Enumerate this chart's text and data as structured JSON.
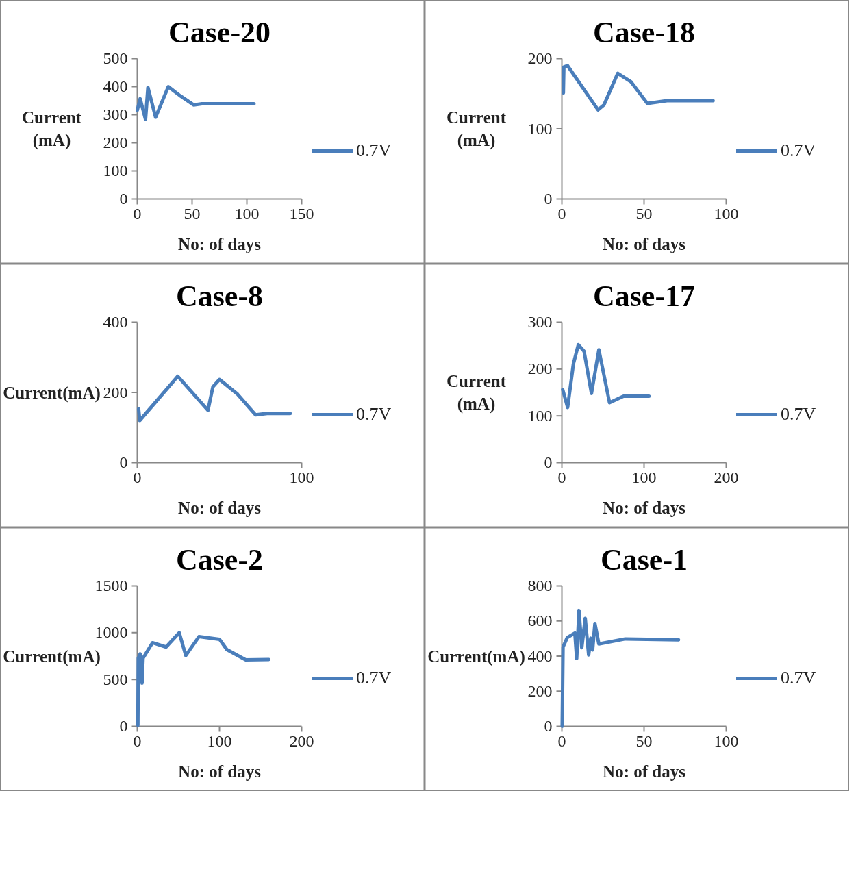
{
  "chart_data": [
    {
      "type": "line",
      "title": "Case-20",
      "xlabel": "No: of days",
      "ylabel": "Current (mA)",
      "xlim": [
        0,
        150
      ],
      "xticks": [
        0,
        50,
        100,
        150
      ],
      "ylim": [
        0,
        500
      ],
      "yticks": [
        0,
        100,
        200,
        300,
        400,
        500
      ],
      "grid": false,
      "legend": "right",
      "line_style": "solid",
      "series": [
        {
          "name": "0.7V",
          "color": "#4a7ebb",
          "x": [
            0,
            2.6,
            7.5,
            9.7,
            16.7,
            28.3,
            39,
            51.4,
            59,
            106.5
          ],
          "values": [
            316,
            357,
            283,
            397,
            291,
            400,
            368,
            335,
            339,
            339
          ]
        }
      ]
    },
    {
      "type": "line",
      "title": "Case-18",
      "xlabel": "No: of days",
      "ylabel": "Current (mA)",
      "xlim": [
        0,
        100
      ],
      "xticks": [
        0,
        50,
        100
      ],
      "ylim": [
        0,
        200
      ],
      "yticks": [
        0,
        100,
        200
      ],
      "grid": false,
      "legend": "right",
      "line_style": "solid",
      "series": [
        {
          "name": "0.7V",
          "color": "#4a7ebb",
          "x": [
            0.9,
            1.2,
            3.4,
            22,
            25.6,
            34,
            42,
            52,
            64,
            92
          ],
          "values": [
            151,
            188,
            190,
            127,
            134,
            179,
            167,
            136,
            140,
            140
          ]
        }
      ]
    },
    {
      "type": "line",
      "title": "Case-8",
      "xlabel": "No: of days",
      "ylabel": "Current(mA)",
      "xlim": [
        0,
        100
      ],
      "xticks": [
        0,
        100
      ],
      "ylim": [
        0,
        400
      ],
      "yticks": [
        0,
        200,
        400
      ],
      "grid": false,
      "legend": "right",
      "line_style": "solid",
      "series": [
        {
          "name": "0.7V",
          "color": "#4a7ebb",
          "x": [
            0.8,
            1.5,
            24.6,
            43,
            46,
            50,
            61,
            72,
            79,
            93
          ],
          "values": [
            153,
            120,
            246,
            149,
            216,
            237,
            195,
            136,
            140,
            140
          ]
        }
      ]
    },
    {
      "type": "line",
      "title": "Case-17",
      "xlabel": "No: of days",
      "ylabel": "Current (mA)",
      "xlim": [
        0,
        200
      ],
      "xticks": [
        0,
        100,
        200
      ],
      "ylim": [
        0,
        300
      ],
      "yticks": [
        0,
        100,
        200,
        300
      ],
      "grid": false,
      "legend": "right",
      "line_style": "solid",
      "series": [
        {
          "name": "0.7V",
          "color": "#4a7ebb",
          "x": [
            1,
            7,
            14,
            20,
            27,
            36,
            45,
            58,
            75,
            106
          ],
          "values": [
            156,
            118,
            211,
            252,
            238,
            148,
            241,
            128,
            142,
            142
          ]
        }
      ]
    },
    {
      "type": "line",
      "title": "Case-2",
      "xlabel": "No: of days",
      "ylabel": "Current(mA)",
      "xlim": [
        0,
        200
      ],
      "xticks": [
        0,
        100,
        200
      ],
      "ylim": [
        0,
        1500
      ],
      "yticks": [
        0,
        500,
        1000,
        1500
      ],
      "grid": false,
      "legend": "right",
      "line_style": "solid",
      "series": [
        {
          "name": "0.7V",
          "color": "#4a7ebb",
          "x": [
            0.7,
            1.2,
            3.5,
            5.8,
            7,
            18.5,
            35,
            51,
            59,
            75,
            100,
            109,
            132,
            160
          ],
          "values": [
            11,
            728,
            774,
            461,
            728,
            893,
            847,
            1000,
            756,
            958,
            930,
            820,
            710,
            713
          ]
        }
      ]
    },
    {
      "type": "line",
      "title": "Case-1",
      "xlabel": "No: of days",
      "ylabel": "Current(mA)",
      "xlim": [
        0,
        100
      ],
      "xticks": [
        0,
        50,
        100
      ],
      "ylim": [
        0,
        800
      ],
      "yticks": [
        0,
        200,
        400,
        600,
        800
      ],
      "grid": false,
      "legend": "right",
      "line_style": "solid",
      "series": [
        {
          "name": "0.7V",
          "color": "#4a7ebb",
          "x": [
            0.2,
            0.7,
            3.3,
            7.9,
            9,
            10.4,
            12.1,
            14.2,
            16.3,
            17.6,
            18.7,
            20.1,
            22.5,
            38.6,
            71
          ],
          "values": [
            0,
            452,
            506,
            531,
            386,
            660,
            448,
            615,
            407,
            502,
            435,
            585,
            469,
            498,
            493
          ]
        }
      ]
    }
  ]
}
